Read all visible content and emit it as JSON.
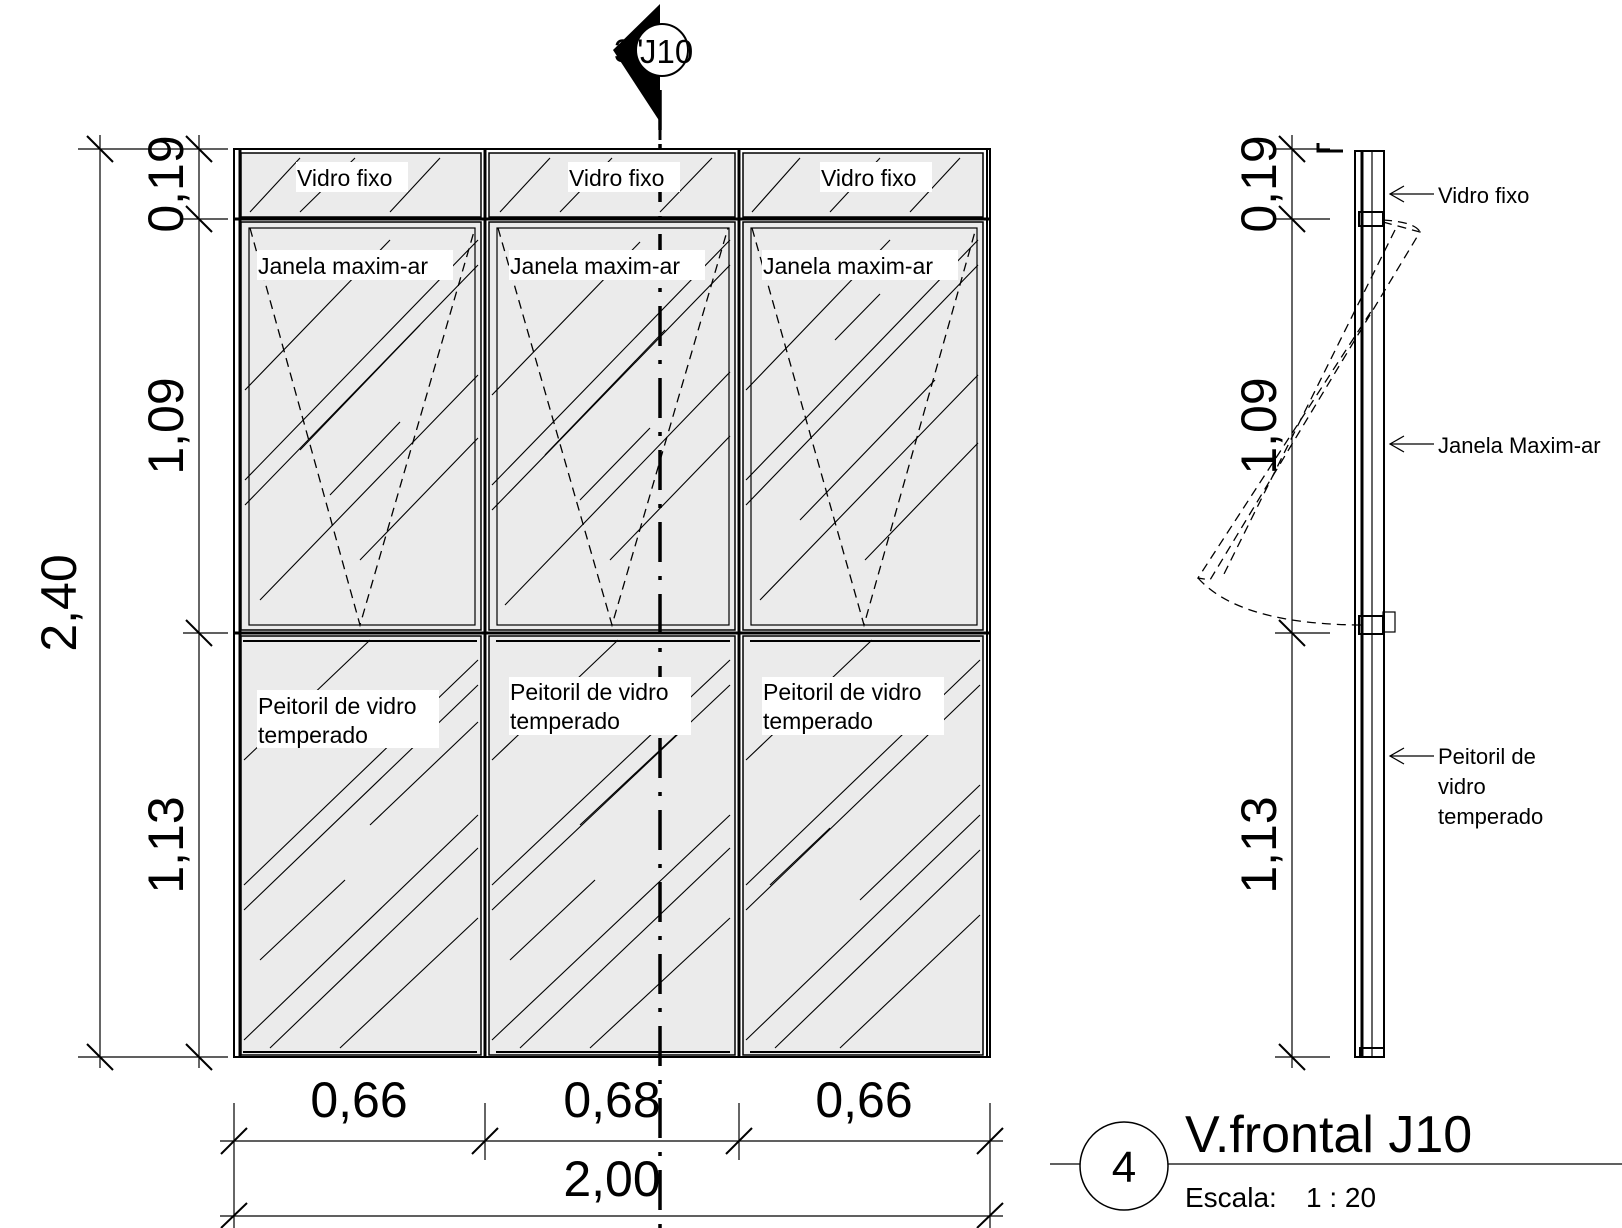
{
  "section_marker": {
    "text": "J10",
    "prefix": "3\""
  },
  "front": {
    "panel_labels": {
      "top": "Vidro fixo",
      "mid": "Janela maxim-ar",
      "bottom_line1": "Peitoril de vidro",
      "bottom_line2": "temperado"
    },
    "dims": {
      "v_top": "0,19",
      "v_mid": "1,09",
      "v_bot": "1,13",
      "v_total": "2,40",
      "h_left": "0,66",
      "h_center": "0,68",
      "h_right": "0,66",
      "h_total": "2,00"
    }
  },
  "side": {
    "labels": {
      "top": "Vidro fixo",
      "mid": "Janela Maxim-ar",
      "bot_line1": "Peitoril de",
      "bot_line2": "vidro",
      "bot_line3": "temperado"
    },
    "dims": {
      "v_top": "0,19",
      "v_mid": "1,09",
      "v_bot": "1,13"
    }
  },
  "title_block": {
    "number": "4",
    "title": "V.frontal J10",
    "scale_label": "Escala:",
    "scale_value": "1 : 20"
  }
}
